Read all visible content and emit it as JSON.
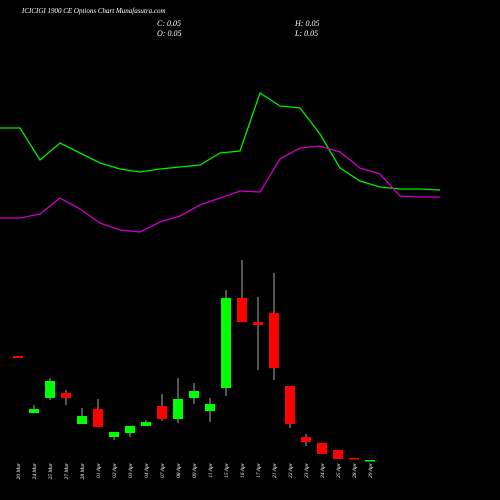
{
  "chart_data": {
    "type": "candlestick",
    "title": "ICICIGI 1900 CE Options Chart Munafasutra.com",
    "ohlc_readout": [
      "C: 0.05",
      "H: 0.05",
      "O: 0.05",
      "L: 0.05"
    ],
    "categories": [
      "20 Mar",
      "24 Mar",
      "25 Mar",
      "27 Mar",
      "28 Mar",
      "01 Apr",
      "02 Apr",
      "03 Apr",
      "04 Apr",
      "07 Apr",
      "08 Apr",
      "09 Apr",
      "11 Apr",
      "15 Apr",
      "16 Apr",
      "17 Apr",
      "21 Apr",
      "22 Apr",
      "23 Apr",
      "24 Apr",
      "25 Apr",
      "28 Apr",
      "29 Apr"
    ],
    "open": [
      2.13,
      0.99,
      1.29,
      1.39,
      0.77,
      1.07,
      0.51,
      0.59,
      0.73,
      1.13,
      0.87,
      1.29,
      1.03,
      1.49,
      3.29,
      2.81,
      2.99,
      1.53,
      0.51,
      0.39,
      0.25,
      0.09,
      0.05
    ],
    "high": [
      2.13,
      1.15,
      1.69,
      1.45,
      1.09,
      1.27,
      0.61,
      0.73,
      0.85,
      1.37,
      1.69,
      1.59,
      1.29,
      3.45,
      4.05,
      3.31,
      3.79,
      1.53,
      0.57,
      0.39,
      0.25,
      0.09,
      0.05
    ],
    "low": [
      2.09,
      0.99,
      1.25,
      1.15,
      0.77,
      0.71,
      0.45,
      0.51,
      0.73,
      0.83,
      0.79,
      1.17,
      0.81,
      1.33,
      2.81,
      1.85,
      1.65,
      0.69,
      0.33,
      0.17,
      0.07,
      0.07,
      0.05
    ],
    "close": [
      2.09,
      1.07,
      1.63,
      1.29,
      0.93,
      0.71,
      0.61,
      0.73,
      0.81,
      0.87,
      1.27,
      1.43,
      1.17,
      3.29,
      2.81,
      2.75,
      1.89,
      0.77,
      0.41,
      0.17,
      0.07,
      0.07,
      0.05
    ],
    "up_color": "#00ff00",
    "down_color": "#ff0000",
    "ylim": [
      -0.75,
      9.25
    ],
    "y2lim": [
      0,
      10
    ],
    "series": [
      {
        "color": "#00ee00",
        "axis": "y2",
        "values": [
          7.44,
          7.44,
          6.8,
          7.14,
          6.94,
          6.74,
          6.62,
          6.56,
          6.62,
          6.66,
          6.7,
          6.94,
          6.98,
          8.14,
          7.88,
          7.84,
          7.32,
          6.64,
          6.38,
          6.26,
          6.22,
          6.22,
          6.2
        ]
      },
      {
        "color": "#cc00cc",
        "axis": "y2",
        "values": [
          5.64,
          5.64,
          5.72,
          6.04,
          5.82,
          5.54,
          5.4,
          5.36,
          5.56,
          5.68,
          5.9,
          6.04,
          6.18,
          6.16,
          6.82,
          7.04,
          7.08,
          6.96,
          6.64,
          6.52,
          6.08,
          6.06,
          6.06
        ]
      }
    ]
  }
}
